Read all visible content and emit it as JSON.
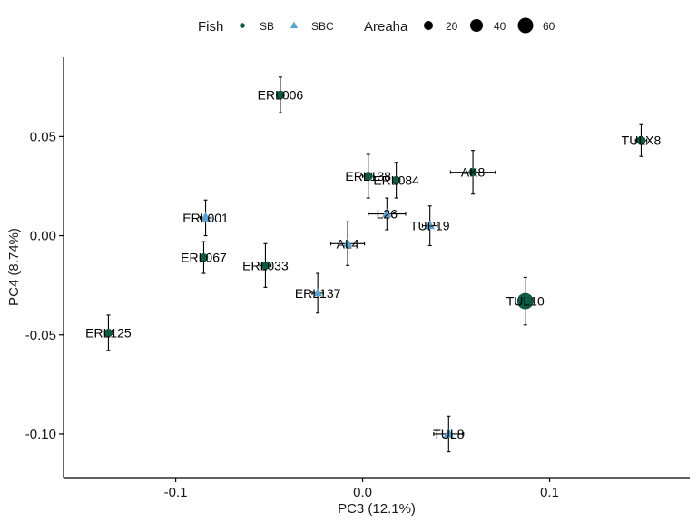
{
  "chart_data": {
    "type": "scatter",
    "xlabel": "PC3 (12.1%)",
    "ylabel": "PC4 (8.74%)",
    "xlim": [
      -0.16,
      0.175
    ],
    "ylim": [
      -0.122,
      0.09
    ],
    "x_ticks": [
      -0.1,
      0.0,
      0.1
    ],
    "x_tick_labels": [
      "-0.1",
      "0.0",
      "0.1"
    ],
    "y_ticks": [
      0.05,
      0.0,
      -0.05,
      -0.1
    ],
    "y_tick_labels": [
      "0.05",
      "0.00",
      "-0.05",
      "-0.10"
    ],
    "grid": false,
    "legend_position": "top",
    "colors": {
      "SB": "#0e5a44",
      "SBC": "#5ba3cf"
    },
    "legend": {
      "fish_title": "Fish",
      "fish_items": [
        {
          "label": "SB",
          "shape": "circle"
        },
        {
          "label": "SBC",
          "shape": "triangle"
        }
      ],
      "size_title": "Areaha",
      "size_items": [
        {
          "label": "20",
          "value": 20
        },
        {
          "label": "40",
          "value": 40
        },
        {
          "label": "60",
          "value": 60
        }
      ]
    },
    "points": [
      {
        "label": "ERL006",
        "group": "SB",
        "x": -0.044,
        "y": 0.071,
        "xerr": 0.002,
        "yerr": 0.009,
        "size": 8
      },
      {
        "label": "TULX8",
        "group": "SB",
        "x": 0.149,
        "y": 0.048,
        "xerr": 0.003,
        "yerr": 0.008,
        "size": 8
      },
      {
        "label": "ERL138",
        "group": "SB",
        "x": 0.003,
        "y": 0.03,
        "xerr": 0.003,
        "yerr": 0.011,
        "size": 8
      },
      {
        "label": "ERL084",
        "group": "SB",
        "x": 0.018,
        "y": 0.028,
        "xerr": 0.002,
        "yerr": 0.009,
        "size": 6
      },
      {
        "label": "AK8",
        "group": "SB",
        "x": 0.059,
        "y": 0.032,
        "xerr": 0.012,
        "yerr": 0.011,
        "size": 6
      },
      {
        "label": "ERL001",
        "group": "SBC",
        "x": -0.084,
        "y": 0.009,
        "xerr": 0.003,
        "yerr": 0.009,
        "size": 18
      },
      {
        "label": "L26",
        "group": "SBC",
        "x": 0.013,
        "y": 0.011,
        "xerr": 0.01,
        "yerr": 0.008,
        "size": 14
      },
      {
        "label": "TUP19",
        "group": "SBC",
        "x": 0.036,
        "y": 0.005,
        "xerr": 0.004,
        "yerr": 0.01,
        "size": 14
      },
      {
        "label": "AL4",
        "group": "SBC",
        "x": -0.008,
        "y": -0.004,
        "xerr": 0.009,
        "yerr": 0.011,
        "size": 14
      },
      {
        "label": "ERL067",
        "group": "SB",
        "x": -0.085,
        "y": -0.011,
        "xerr": 0.002,
        "yerr": 0.008,
        "size": 6
      },
      {
        "label": "ERL033",
        "group": "SB",
        "x": -0.052,
        "y": -0.015,
        "xerr": 0.003,
        "yerr": 0.011,
        "size": 6
      },
      {
        "label": "ERL137",
        "group": "SBC",
        "x": -0.024,
        "y": -0.029,
        "xerr": 0.003,
        "yerr": 0.01,
        "size": 11
      },
      {
        "label": "TUL10",
        "group": "SB",
        "x": 0.087,
        "y": -0.033,
        "xerr": 0.003,
        "yerr": 0.012,
        "size": 60
      },
      {
        "label": "ERL125",
        "group": "SB",
        "x": -0.136,
        "y": -0.049,
        "xerr": 0.002,
        "yerr": 0.009,
        "size": 6
      },
      {
        "label": "TUL8",
        "group": "SBC",
        "x": 0.046,
        "y": -0.1,
        "xerr": 0.008,
        "yerr": 0.009,
        "size": 18
      }
    ]
  }
}
